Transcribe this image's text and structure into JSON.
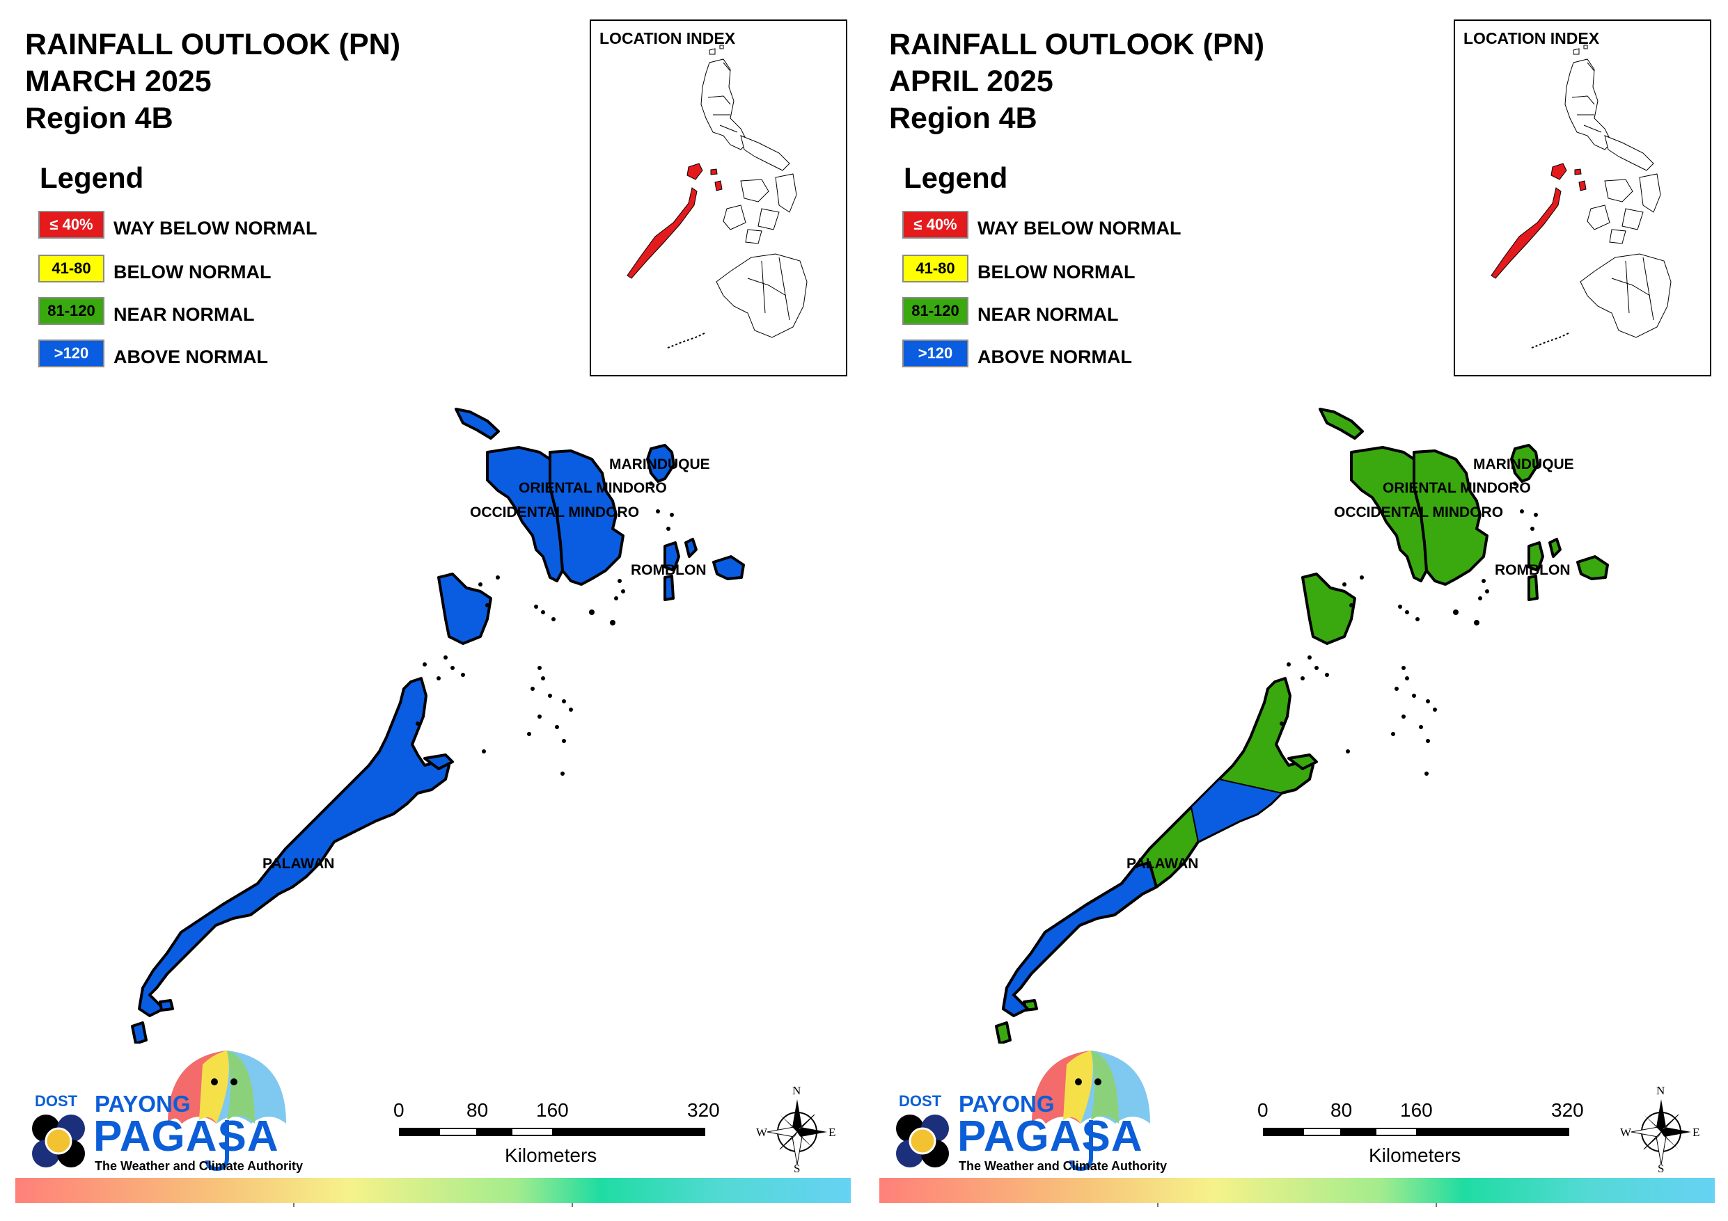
{
  "panels": [
    {
      "id": "march",
      "title_line1": "RAINFALL OUTLOOK (PN)",
      "title_line2": "MARCH 2025",
      "title_line3": "Region 4B",
      "province_categories": {
        "Marinduque": "above-normal",
        "Oriental Mindoro": "above-normal",
        "Occidental Mindoro": "above-normal",
        "Romblon": "above-normal",
        "Palawan": "above-normal"
      }
    },
    {
      "id": "april",
      "title_line1": "RAINFALL OUTLOOK (PN)",
      "title_line2": "APRIL 2025",
      "title_line3": "Region 4B",
      "province_categories": {
        "Marinduque": "near-normal",
        "Oriental Mindoro": "near-normal",
        "Occidental Mindoro": "near-normal",
        "Romblon": "near-normal",
        "Palawan": "mixed"
      }
    }
  ],
  "legend": {
    "title": "Legend",
    "items": [
      {
        "range": "≤ 40%",
        "label": "WAY BELOW NORMAL",
        "color": "#e41a1c",
        "text_color": "#ffffff"
      },
      {
        "range": "41-80",
        "label": "BELOW NORMAL",
        "color": "#ffff00",
        "text_color": "#000000"
      },
      {
        "range": "81-120",
        "label": "NEAR NORMAL",
        "color": "#3aa80f",
        "text_color": "#000000"
      },
      {
        "range": ">120",
        "label": "ABOVE NORMAL",
        "color": "#0a5de0",
        "text_color": "#ffffff"
      }
    ]
  },
  "inset": {
    "title": "LOCATION INDEX",
    "highlight_color": "#e41a1c"
  },
  "region_labels": {
    "marinduque": "MARINDUQUE",
    "oriental_mindoro": "ORIENTAL MINDORO",
    "occidental_mindoro": "OCCIDENTAL MINDORO",
    "romblon": "ROMBLON",
    "palawan": "PALAWAN"
  },
  "logo": {
    "dost": "DOST",
    "payong": "PAYONG",
    "pagasa": "PAGASA",
    "tagline": "The Weather and Climate Authority"
  },
  "scale_bar": {
    "ticks": [
      "0",
      "80",
      "160",
      "320"
    ],
    "unit": "Kilometers"
  },
  "compass": {
    "n": "N",
    "s": "S",
    "e": "E",
    "w": "W"
  },
  "colors": {
    "above_normal": "#0a5de0",
    "near_normal": "#3aa80f",
    "below_normal": "#ffff00",
    "way_below_normal": "#e41a1c"
  }
}
